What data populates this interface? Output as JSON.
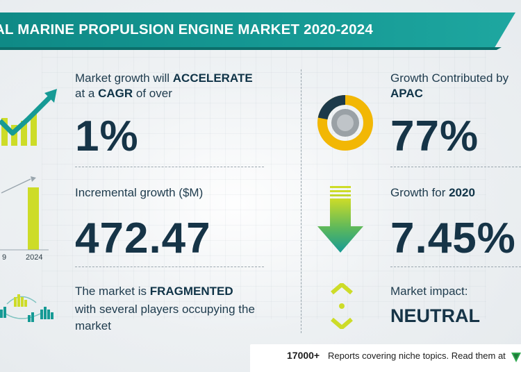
{
  "header": {
    "title": "AL MARINE PROPULSION ENGINE MARKET 2020-2024"
  },
  "growth": {
    "line1_prefix": "Market growth will ",
    "line1_bold": "ACCELERATE",
    "line2_prefix": "at a ",
    "line2_bold": "CAGR",
    "line2_suffix": " of over",
    "value": "1%"
  },
  "incremental": {
    "label": "Incremental growth ($M)",
    "value": "472.47",
    "year_left": "9",
    "year_right": "2024"
  },
  "market": {
    "line1_prefix": "The market is ",
    "line1_bold": "FRAGMENTED",
    "line2": "with several players occupying the",
    "line3": "market"
  },
  "apac": {
    "line1": "Growth Contributed by",
    "region": "APAC",
    "value": "77%"
  },
  "growth2020": {
    "label_prefix": "Growth for ",
    "year": "2020",
    "value": "7.45%"
  },
  "impact": {
    "label": "Market impact:",
    "value": "NEUTRAL"
  },
  "footer": {
    "count": "17000+",
    "text": "Reports covering niche topics. Read them at"
  },
  "colors": {
    "teal": "#169a95",
    "yellow": "#cddc28",
    "navy": "#163447",
    "gold": "#f2b705"
  }
}
